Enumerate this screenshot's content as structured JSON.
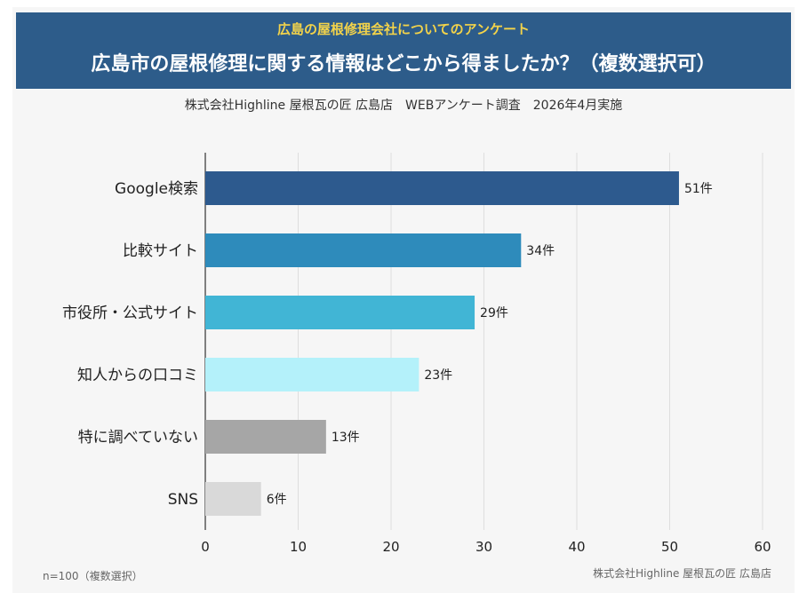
{
  "header": {
    "survey_label": "広島の屋根修理会社についてのアンケート",
    "title": "広島市の屋根修理に関する情報はどこから得ましたか？（複数選択可）"
  },
  "subtitle": "株式会社Highline 屋根瓦の匠 広島店　WEBアンケート調査　2026年4月実施",
  "footnote_left": "n=100（複数選択）",
  "footnote_right": "株式会社Highline 屋根瓦の匠 広島店",
  "chart_data": {
    "type": "bar",
    "orientation": "horizontal",
    "categories": [
      "Google検索",
      "比較サイト",
      "市役所・公式サイト",
      "知人からの口コミ",
      "特に調べていない",
      "SNS"
    ],
    "values": [
      51,
      34,
      29,
      23,
      13,
      6
    ],
    "value_suffix": "件",
    "colors": [
      "#2d5a8e",
      "#2e8bbb",
      "#41b5d5",
      "#b4f1fa",
      "#a6a6a6",
      "#d9d9d9"
    ],
    "xlim": [
      0,
      60
    ],
    "xticks": [
      0,
      10,
      20,
      30,
      40,
      50,
      60
    ],
    "grid": true
  }
}
